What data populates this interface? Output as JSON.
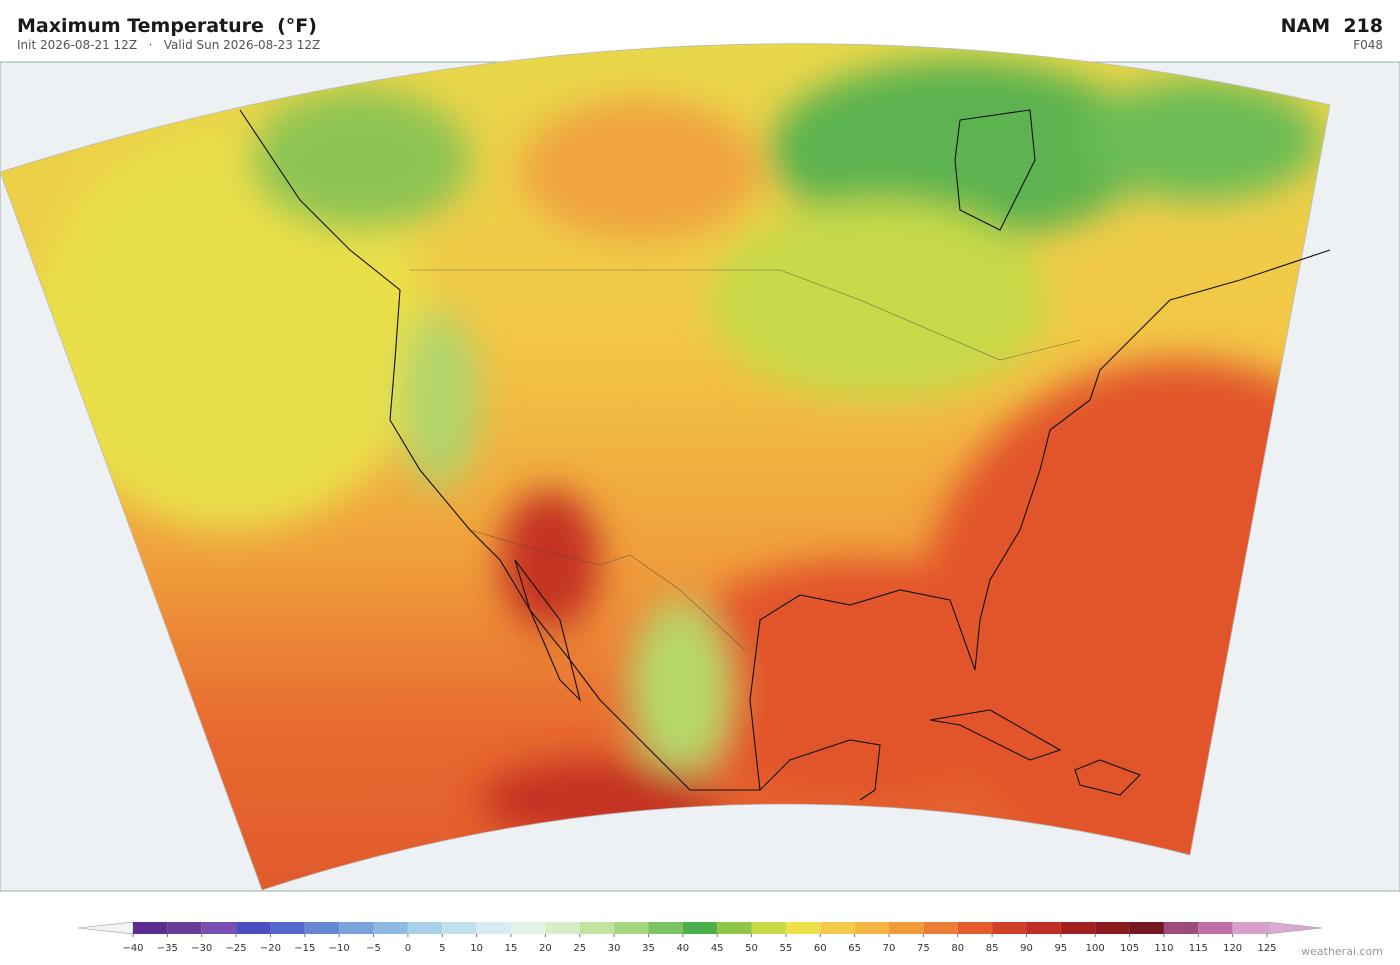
{
  "header": {
    "title": "Maximum Temperature  (°F)",
    "init": "Init 2026-08-21 12Z",
    "separator": "·",
    "valid": "Valid Sun 2026-08-23 12Z",
    "model": "NAM  218",
    "forecast_hour": "F048"
  },
  "colorbar": {
    "ticks": [
      {
        "value": -40,
        "label": "−40"
      },
      {
        "value": -35,
        "label": "−35"
      },
      {
        "value": -30,
        "label": "−30"
      },
      {
        "value": -25,
        "label": "−25"
      },
      {
        "value": -20,
        "label": "−20"
      },
      {
        "value": -15,
        "label": "−15"
      },
      {
        "value": -10,
        "label": "−10"
      },
      {
        "value": -5,
        "label": "−5"
      },
      0,
      5,
      10,
      15,
      20,
      25,
      30,
      35,
      40,
      45,
      50,
      55,
      60,
      65,
      70,
      75,
      80,
      85,
      90,
      95,
      100,
      105,
      110,
      115,
      120,
      125
    ],
    "colors": [
      "#5b2d8e",
      "#6a3d9a",
      "#7950b0",
      "#4a4fc0",
      "#5566cc",
      "#6688d4",
      "#7ba3da",
      "#8fbbe0",
      "#a8d0e8",
      "#c0e0ee",
      "#d6ecf2",
      "#e4f3ea",
      "#d6edc8",
      "#bfe3a0",
      "#a3d67f",
      "#7cc463",
      "#4caf4c",
      "#8fc64a",
      "#c8d94a",
      "#ede04a",
      "#f4cb48",
      "#f4b542",
      "#f09a3a",
      "#ec7d34",
      "#e45a2c",
      "#d43f28",
      "#c02d25",
      "#a51f22",
      "#8c1a1f",
      "#74171e",
      "#9e4a7a",
      "#c070a8",
      "#d8a0cc"
    ],
    "under_color": "#f4f4f4",
    "over_color": "#dba8d4"
  },
  "credit": "weatherai.com"
}
